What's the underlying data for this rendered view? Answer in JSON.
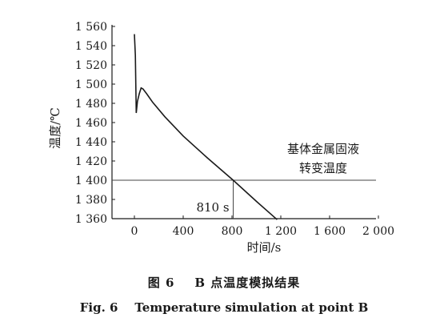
{
  "chart_data": {
    "type": "line",
    "xlabel": "时间/s",
    "ylabel": "温度/℃",
    "xlim": [
      0,
      2000
    ],
    "ylim": [
      1360,
      1560
    ],
    "xticks": [
      0,
      400,
      800,
      1200,
      1600,
      2000
    ],
    "xtick_labels": [
      "0",
      "400",
      "800",
      "1 200",
      "1 600",
      "2 000"
    ],
    "yticks": [
      1360,
      1380,
      1400,
      1420,
      1440,
      1460,
      1480,
      1500,
      1520,
      1540,
      1560
    ],
    "ytick_labels": [
      "1 360",
      "1 380",
      "1 400",
      "1 420",
      "1 440",
      "1 460",
      "1 480",
      "1 500",
      "1 520",
      "1 540",
      "1 560"
    ],
    "grid": false,
    "series": [
      {
        "x": [
          0,
          8,
          15,
          25,
          40,
          55,
          70,
          100,
          150,
          250,
          400,
          600,
          810,
          1000,
          1170
        ],
        "y": [
          1552,
          1530,
          1470,
          1482,
          1490,
          1496,
          1495,
          1490,
          1481,
          1466,
          1446,
          1423,
          1400,
          1378,
          1359
        ]
      }
    ],
    "hline": {
      "y": 1400,
      "label_line1": "基体金属固液",
      "label_line2": "转变温度"
    },
    "vline": {
      "x": 810,
      "label": "810 s"
    }
  },
  "captions": {
    "cn_fig": "图 6",
    "cn_title": "B 点温度模拟结果",
    "en_fig": "Fig. 6",
    "en_title": "Temperature simulation at point B"
  }
}
